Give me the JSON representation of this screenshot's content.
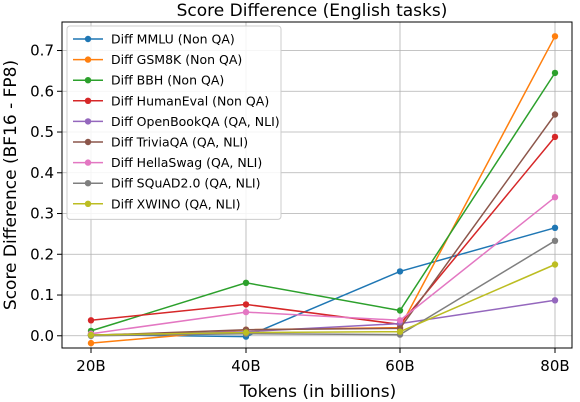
{
  "chart_data": {
    "type": "line",
    "title": "Score Difference (English tasks)",
    "xlabel": "Tokens (in billions)",
    "ylabel": "Score Difference (BF16 - FP8)",
    "categories": [
      "20B",
      "40B",
      "60B",
      "80B"
    ],
    "ylim": [
      -0.03,
      0.77
    ],
    "yticks": [
      0.0,
      0.1,
      0.2,
      0.3,
      0.4,
      0.5,
      0.6,
      0.7
    ],
    "ytick_labels": [
      "0.0",
      "0.1",
      "0.2",
      "0.3",
      "0.4",
      "0.5",
      "0.6",
      "0.7"
    ],
    "grid": true,
    "legend_position": "upper-left",
    "series": [
      {
        "name": "Diff MMLU (Non QA)",
        "color": "#1f77b4",
        "values": [
          0.003,
          -0.002,
          0.158,
          0.265
        ]
      },
      {
        "name": "Diff GSM8K (Non QA)",
        "color": "#ff7f0e",
        "values": [
          -0.018,
          0.015,
          0.02,
          0.735
        ]
      },
      {
        "name": "Diff BBH (Non QA)",
        "color": "#2ca02c",
        "values": [
          0.012,
          0.13,
          0.062,
          0.645
        ]
      },
      {
        "name": "Diff HumanEval (Non QA)",
        "color": "#d62728",
        "values": [
          0.038,
          0.077,
          0.028,
          0.488
        ]
      },
      {
        "name": "Diff OpenBookQA (QA, NLI)",
        "color": "#9467bd",
        "values": [
          0.002,
          0.01,
          0.03,
          0.087
        ]
      },
      {
        "name": "Diff TriviaQA (QA, NLI)",
        "color": "#8c564b",
        "values": [
          0.001,
          0.015,
          0.018,
          0.543
        ]
      },
      {
        "name": "Diff HellaSwag (QA, NLI)",
        "color": "#e377c2",
        "values": [
          0.005,
          0.058,
          0.038,
          0.34
        ]
      },
      {
        "name": "Diff SQuAD2.0 (QA, NLI)",
        "color": "#7f7f7f",
        "values": [
          0.0,
          0.005,
          0.003,
          0.233
        ]
      },
      {
        "name": "Diff XWINO (QA, NLI)",
        "color": "#bcbd22",
        "values": [
          0.002,
          0.008,
          0.01,
          0.175
        ]
      }
    ]
  }
}
